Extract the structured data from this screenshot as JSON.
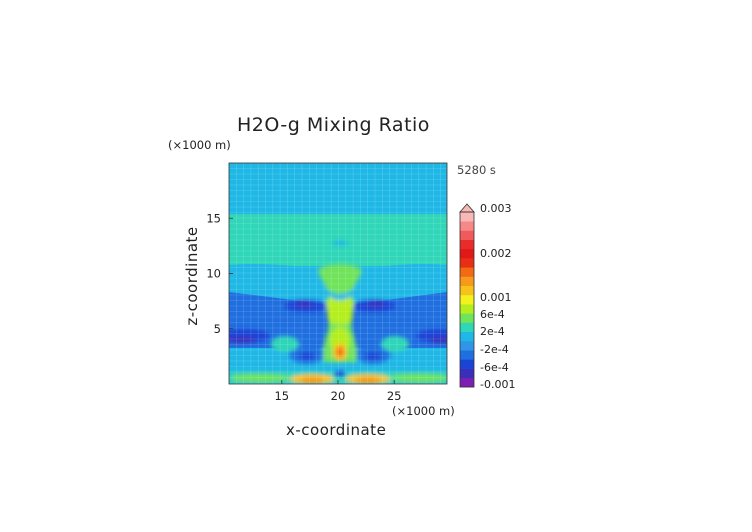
{
  "chart_data": {
    "type": "heatmap",
    "title": "H2O-g Mixing Ratio",
    "xlabel": "x-coordinate",
    "ylabel": "z-coordinate",
    "x_unit": "(×1000 m)",
    "y_unit": "(×1000 m)",
    "time_label": "5280 s",
    "xlim": [
      10.3,
      29.7
    ],
    "ylim": [
      0,
      20
    ],
    "x_ticks": [
      "15",
      "20",
      "25"
    ],
    "y_ticks": [
      "5",
      "10",
      "15"
    ],
    "grid": true,
    "colorbar": {
      "levels": [
        "0.003",
        "0.002",
        "0.001",
        "6e-4",
        "2e-4",
        "-2e-4",
        "-6e-4",
        "-0.001"
      ],
      "colors": [
        "#7d1fb3",
        "#3a2fb8",
        "#1b44d6",
        "#1f6fe0",
        "#2f95e6",
        "#1fb8e6",
        "#2fd6b8",
        "#6fe35a",
        "#b4ee1e",
        "#f2f21e",
        "#f7c21a",
        "#f79a1a",
        "#f26a14",
        "#e82e14",
        "#e01818",
        "#e82c2c",
        "#f05a5a",
        "#f58888",
        "#f9b8b8"
      ],
      "extend_top": "triangle"
    },
    "features": [
      {
        "region": "upper layer z>15",
        "value_range": "-2e-4 to 2e-4",
        "color": "#1fb8e6"
      },
      {
        "region": "band z≈10–15",
        "value_range": "0 to 2e-4",
        "color": "#2fd6b8"
      },
      {
        "region": "central plume x≈17–23",
        "value_range": "2e-4 to 6e-4",
        "color": "#b4ee1e"
      },
      {
        "region": "near-surface z<1",
        "value_range": "6e-4 to 0.001",
        "color": "#f79a1a"
      },
      {
        "region": "lateral layer z≈3.5–5",
        "value_range": "-6e-4 to -2e-4",
        "color": "#1b44d6"
      }
    ]
  }
}
